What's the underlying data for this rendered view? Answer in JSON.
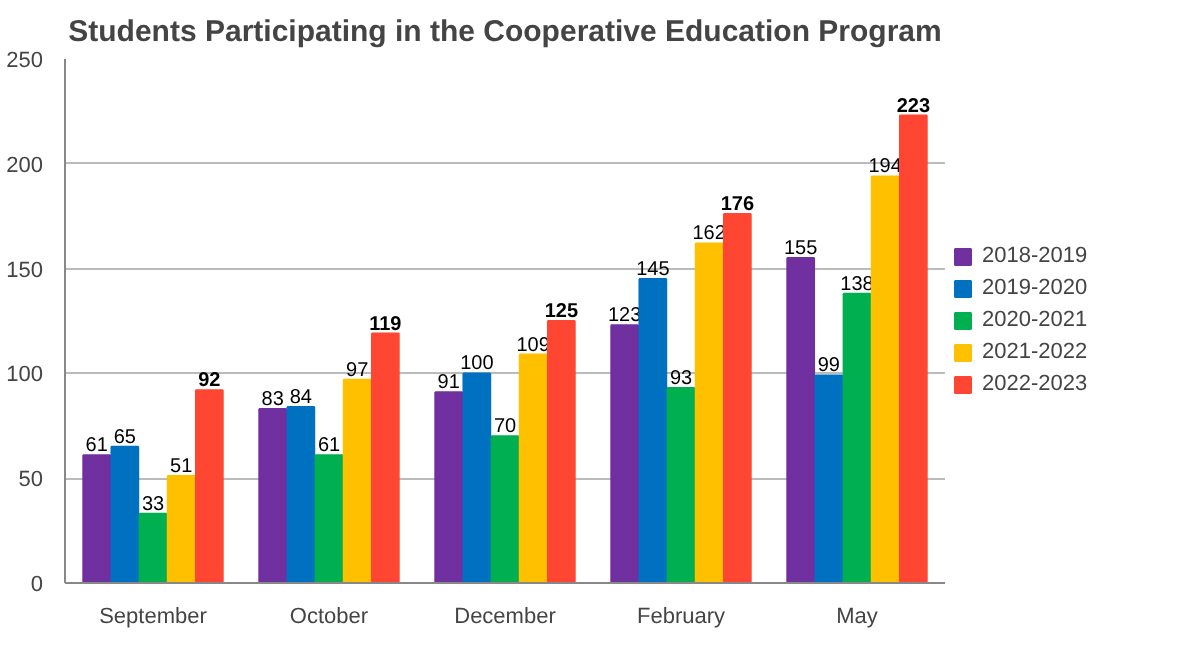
{
  "chart_data": {
    "type": "bar",
    "title": "Students Participating in the Cooperative Education Program",
    "categories": [
      "September",
      "October",
      "December",
      "February",
      "May"
    ],
    "series": [
      {
        "name": "2018-2019",
        "color": "#7030a0",
        "values": [
          61,
          83,
          91,
          123,
          155
        ]
      },
      {
        "name": "2019-2020",
        "color": "#0070c0",
        "values": [
          65,
          84,
          100,
          145,
          99
        ]
      },
      {
        "name": "2020-2021",
        "color": "#00b050",
        "values": [
          33,
          61,
          70,
          93,
          138
        ]
      },
      {
        "name": "2021-2022",
        "color": "#ffc000",
        "values": [
          51,
          97,
          109,
          162,
          194
        ]
      },
      {
        "name": "2022-2023",
        "color": "#ff4633",
        "values": [
          92,
          119,
          125,
          176,
          223
        ]
      }
    ],
    "ylim": [
      0,
      250
    ],
    "yticks": [
      0,
      50,
      100,
      150,
      200,
      250
    ],
    "grid": "y",
    "legend": "right",
    "data_labels": true
  }
}
